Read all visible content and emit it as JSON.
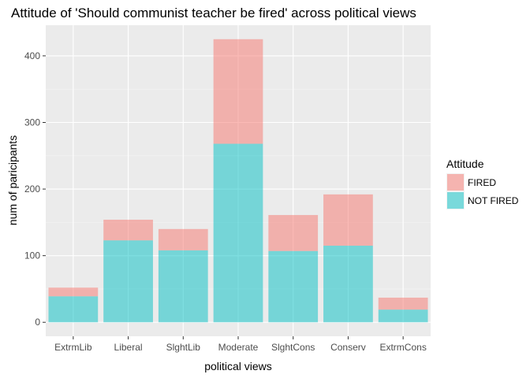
{
  "chart_data": {
    "type": "bar",
    "stacked": true,
    "title": "Attitude of 'Should communist teacher be fired' across political views",
    "xlabel": "political views",
    "ylabel": "num of paricipants",
    "categories": [
      "ExtrmLib",
      "Liberal",
      "SlghtLib",
      "Moderate",
      "SlghtCons",
      "Conserv",
      "ExtrmCons"
    ],
    "series": [
      {
        "name": "NOT FIRED",
        "color": "#00BFC4",
        "values": [
          39,
          123,
          108,
          268,
          107,
          115,
          19
        ]
      },
      {
        "name": "FIRED",
        "color": "#F8766D",
        "values": [
          13,
          31,
          32,
          157,
          54,
          77,
          18
        ]
      }
    ],
    "ylim": [
      -21,
      446
    ],
    "yticks": [
      0,
      100,
      200,
      300,
      400
    ],
    "grid": true,
    "legend": {
      "title": "Attitude",
      "position": "right",
      "entries": [
        {
          "label": "FIRED",
          "color": "#F8766D"
        },
        {
          "label": "NOT FIRED",
          "color": "#00BFC4"
        }
      ]
    }
  }
}
